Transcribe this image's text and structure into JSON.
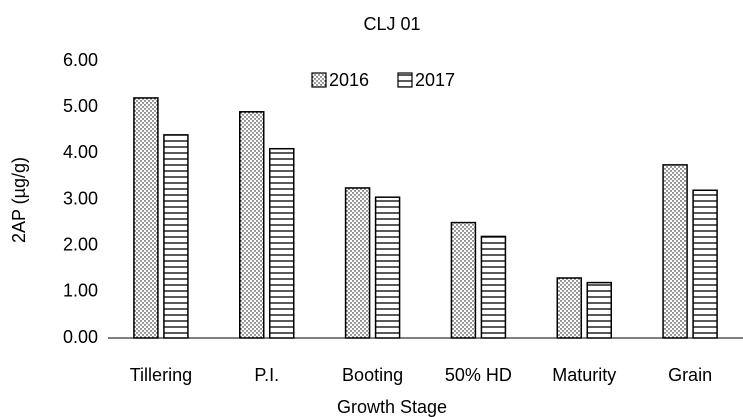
{
  "chart_data": {
    "type": "bar",
    "title": "CLJ 01",
    "x_label": "Growth Stage",
    "y_label": "2AP (µg/g)",
    "categories": [
      "Tillering",
      "P.I.",
      "Booting",
      "50% HD",
      "Maturity",
      "Grain"
    ],
    "series": [
      {
        "name": "2016",
        "color": "#000000",
        "pattern": "dots",
        "values": [
          5.2,
          4.9,
          3.25,
          2.5,
          1.3,
          3.75
        ]
      },
      {
        "name": "2017",
        "color": "#000000",
        "pattern": "hlines",
        "values": [
          4.4,
          4.1,
          3.05,
          2.2,
          1.2,
          3.2
        ]
      }
    ],
    "ylim": [
      0,
      6
    ],
    "yticks": [
      {
        "value": 0,
        "label": "0.00"
      },
      {
        "value": 1,
        "label": "1.00"
      },
      {
        "value": 2,
        "label": "2.00"
      },
      {
        "value": 3,
        "label": "3.00"
      },
      {
        "value": 4,
        "label": "4.00"
      },
      {
        "value": 5,
        "label": "5.00"
      },
      {
        "value": 6,
        "label": "6.00"
      }
    ],
    "grid": false,
    "legend": "top"
  }
}
